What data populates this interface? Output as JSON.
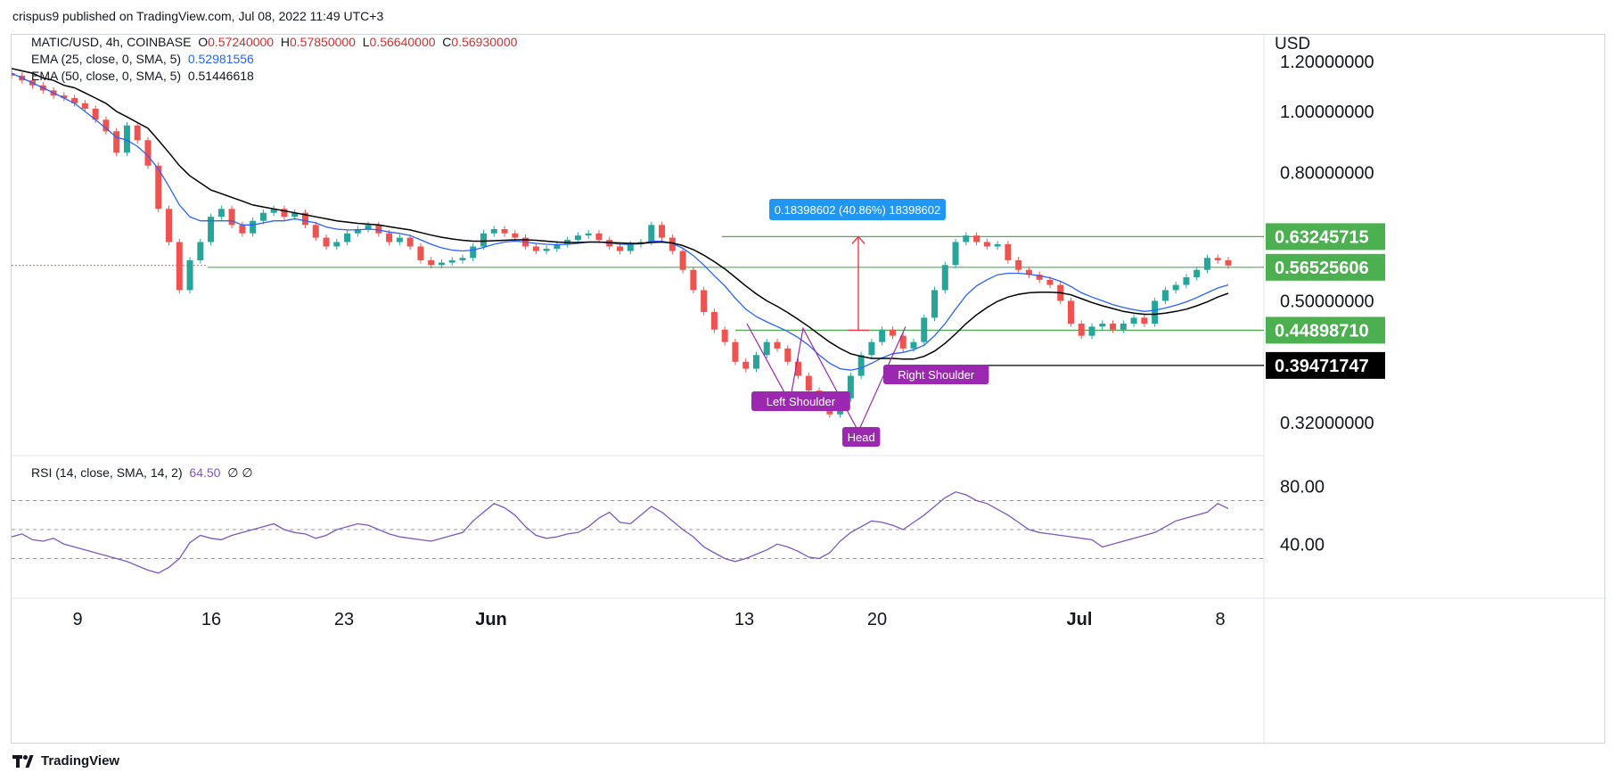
{
  "header": {
    "publisher": "crispus9 published on TradingView.com, Jul 08, 2022 11:49 UTC+3"
  },
  "legend": {
    "symbol": "MATIC/USD, 4h, COINBASE",
    "o_label": "O",
    "o_value": "0.57240000",
    "h_label": "H",
    "h_value": "0.57850000",
    "l_label": "L",
    "l_value": "0.56640000",
    "c_label": "C",
    "c_value": "0.56930000",
    "ema25_label": "EMA (25, close, 0, SMA, 5)",
    "ema25_value": "0.52981556",
    "ema50_label": "EMA (50, close, 0, SMA, 5)",
    "ema50_value": "0.51446618",
    "rsi_label": "RSI (14, close, SMA, 14, 2)",
    "rsi_value": "64.50",
    "rsi_extra": "∅  ∅"
  },
  "colors": {
    "up": "#26a69a",
    "down": "#ef5350",
    "ema25": "#2962ff",
    "ema50": "#000000",
    "level_green": "#4caf50",
    "black_level": "#000000",
    "pattern": "#9c27b0",
    "rsi": "#7e57c2",
    "measure": "#f23645",
    "measure_label": "#2196f3"
  },
  "currency": "USD",
  "footer": {
    "brand": "TradingView"
  },
  "chart_data": [
    {
      "type": "candlestick",
      "title": "MATIC/USD, 4h, COINBASE",
      "ylabel": "USD",
      "x_ticks": [
        "9",
        "16",
        "23",
        "Jun",
        "13",
        "20",
        "Jul",
        "8"
      ],
      "y_ticks": [
        "1.20000000",
        "1.00000000",
        "0.80000000",
        "0.50000000",
        "0.32000000"
      ],
      "price_levels": [
        "0.63245715",
        "0.56525606",
        "0.44898710",
        "0.39471747"
      ],
      "measure_label": "0.18398602 (40.86%) 18398602",
      "annotations": [
        "Left Shoulder",
        "Head",
        "Right Shoulder"
      ],
      "series_close": [
        1.14,
        1.12,
        1.1,
        1.08,
        1.06,
        1.05,
        1.03,
        1.01,
        0.97,
        0.93,
        0.86,
        0.95,
        0.9,
        0.82,
        0.7,
        0.62,
        0.52,
        0.58,
        0.62,
        0.68,
        0.7,
        0.66,
        0.64,
        0.67,
        0.69,
        0.7,
        0.68,
        0.69,
        0.66,
        0.63,
        0.61,
        0.62,
        0.64,
        0.65,
        0.66,
        0.64,
        0.62,
        0.63,
        0.61,
        0.58,
        0.57,
        0.575,
        0.58,
        0.585,
        0.61,
        0.64,
        0.65,
        0.64,
        0.63,
        0.61,
        0.6,
        0.605,
        0.615,
        0.625,
        0.635,
        0.64,
        0.625,
        0.61,
        0.6,
        0.615,
        0.62,
        0.66,
        0.63,
        0.6,
        0.56,
        0.52,
        0.48,
        0.45,
        0.43,
        0.4,
        0.39,
        0.41,
        0.43,
        0.42,
        0.4,
        0.38,
        0.36,
        0.34,
        0.33,
        0.35,
        0.38,
        0.41,
        0.43,
        0.45,
        0.44,
        0.42,
        0.43,
        0.47,
        0.52,
        0.57,
        0.62,
        0.635,
        0.62,
        0.61,
        0.615,
        0.58,
        0.56,
        0.55,
        0.54,
        0.53,
        0.5,
        0.46,
        0.44,
        0.455,
        0.46,
        0.45,
        0.46,
        0.47,
        0.46,
        0.5,
        0.52,
        0.53,
        0.545,
        0.56,
        0.585,
        0.58,
        0.569
      ],
      "series_ema25": [
        1.15,
        1.13,
        1.11,
        1.09,
        1.07,
        1.05,
        1.03,
        1.0,
        0.97,
        0.94,
        0.91,
        0.9,
        0.88,
        0.85,
        0.81,
        0.76,
        0.71,
        0.68,
        0.67,
        0.67,
        0.67,
        0.67,
        0.66,
        0.66,
        0.665,
        0.67,
        0.67,
        0.675,
        0.67,
        0.665,
        0.655,
        0.65,
        0.648,
        0.648,
        0.65,
        0.648,
        0.643,
        0.64,
        0.635,
        0.625,
        0.615,
        0.607,
        0.602,
        0.6,
        0.602,
        0.608,
        0.615,
        0.62,
        0.622,
        0.62,
        0.617,
        0.615,
        0.614,
        0.615,
        0.617,
        0.62,
        0.62,
        0.618,
        0.615,
        0.615,
        0.616,
        0.622,
        0.622,
        0.617,
        0.606,
        0.59,
        0.57,
        0.548,
        0.528,
        0.505,
        0.485,
        0.472,
        0.463,
        0.455,
        0.447,
        0.437,
        0.425,
        0.41,
        0.398,
        0.39,
        0.388,
        0.391,
        0.398,
        0.406,
        0.412,
        0.414,
        0.418,
        0.425,
        0.44,
        0.46,
        0.485,
        0.51,
        0.528,
        0.54,
        0.55,
        0.553,
        0.553,
        0.551,
        0.548,
        0.544,
        0.537,
        0.527,
        0.515,
        0.507,
        0.5,
        0.493,
        0.488,
        0.484,
        0.481,
        0.483,
        0.487,
        0.492,
        0.498,
        0.506,
        0.515,
        0.524,
        0.53
      ],
      "series_ema50": [
        1.17,
        1.16,
        1.15,
        1.13,
        1.12,
        1.1,
        1.09,
        1.07,
        1.05,
        1.03,
        1.0,
        0.98,
        0.96,
        0.94,
        0.9,
        0.86,
        0.82,
        0.79,
        0.77,
        0.75,
        0.74,
        0.73,
        0.72,
        0.71,
        0.705,
        0.7,
        0.695,
        0.69,
        0.685,
        0.68,
        0.675,
        0.67,
        0.667,
        0.664,
        0.662,
        0.66,
        0.656,
        0.652,
        0.648,
        0.642,
        0.636,
        0.631,
        0.627,
        0.624,
        0.622,
        0.622,
        0.623,
        0.624,
        0.625,
        0.625,
        0.624,
        0.622,
        0.62,
        0.619,
        0.619,
        0.62,
        0.62,
        0.619,
        0.618,
        0.617,
        0.617,
        0.619,
        0.62,
        0.618,
        0.612,
        0.603,
        0.591,
        0.577,
        0.562,
        0.545,
        0.528,
        0.513,
        0.5,
        0.49,
        0.479,
        0.467,
        0.455,
        0.442,
        0.43,
        0.42,
        0.412,
        0.408,
        0.405,
        0.405,
        0.405,
        0.404,
        0.404,
        0.408,
        0.416,
        0.428,
        0.443,
        0.46,
        0.475,
        0.488,
        0.499,
        0.507,
        0.512,
        0.515,
        0.516,
        0.516,
        0.515,
        0.511,
        0.504,
        0.497,
        0.491,
        0.486,
        0.481,
        0.478,
        0.476,
        0.476,
        0.478,
        0.481,
        0.485,
        0.491,
        0.498,
        0.507,
        0.514
      ]
    },
    {
      "type": "line",
      "title": "RSI (14, close, SMA, 14, 2)",
      "y_ticks": [
        "80.00",
        "40.00"
      ],
      "values": [
        45,
        47,
        43,
        42,
        44,
        40,
        38,
        36,
        34,
        32,
        30,
        28,
        25,
        22,
        20,
        24,
        30,
        41,
        46,
        44,
        43,
        46,
        48,
        50,
        52,
        54,
        50,
        48,
        47,
        44,
        46,
        50,
        52,
        54,
        53,
        50,
        47,
        45,
        44,
        43,
        42,
        44,
        46,
        48,
        56,
        62,
        68,
        65,
        60,
        52,
        46,
        44,
        45,
        47,
        48,
        52,
        58,
        62,
        55,
        54,
        60,
        66,
        62,
        56,
        50,
        45,
        38,
        34,
        30,
        28,
        30,
        33,
        36,
        40,
        38,
        35,
        31,
        30,
        34,
        42,
        48,
        52,
        56,
        55,
        53,
        50,
        55,
        60,
        66,
        72,
        76,
        74,
        70,
        68,
        64,
        60,
        55,
        50,
        48,
        47,
        46,
        45,
        44,
        43,
        38,
        40,
        42,
        44,
        46,
        48,
        52,
        56,
        58,
        60,
        62,
        68,
        64.5
      ]
    }
  ]
}
